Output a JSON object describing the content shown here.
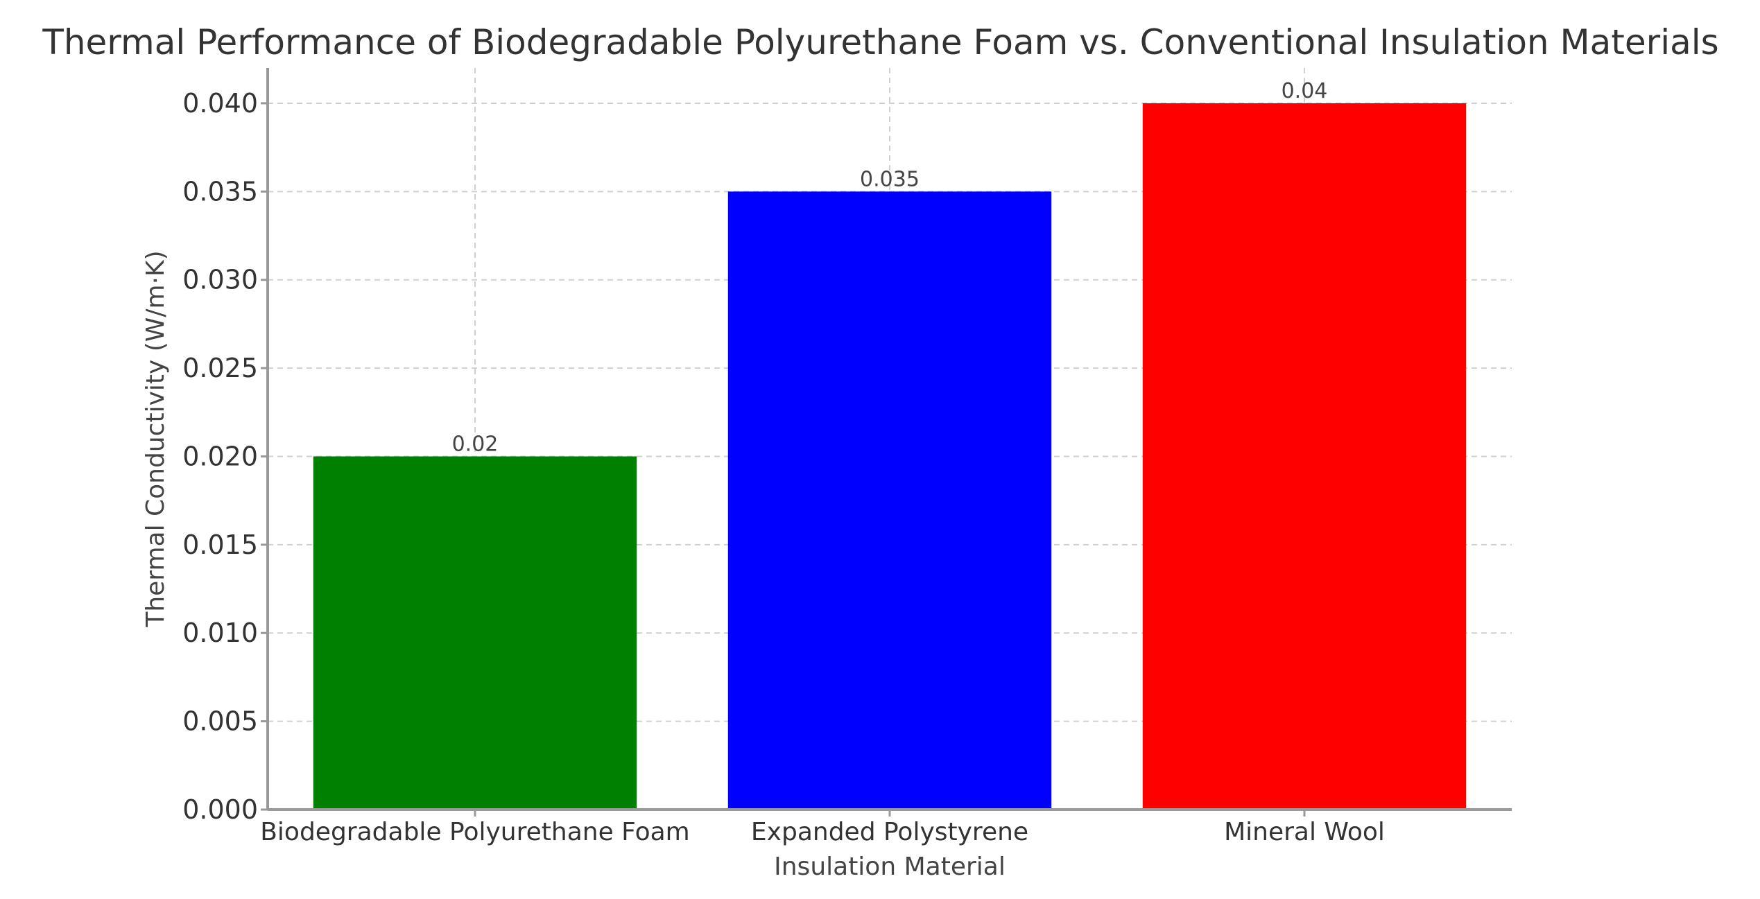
{
  "chart_data": {
    "type": "bar",
    "title": "Thermal Performance of Biodegradable Polyurethane Foam vs. Conventional Insulation Materials",
    "xlabel": "Insulation Material",
    "ylabel": "Thermal Conductivity (W/m·K)",
    "categories": [
      "Biodegradable Polyurethane Foam",
      "Expanded Polystyrene",
      "Mineral Wool"
    ],
    "values": [
      0.02,
      0.035,
      0.04
    ],
    "data_labels": [
      "0.02",
      "0.035",
      "0.04"
    ],
    "colors": [
      "#008000",
      "#0000ff",
      "#ff0000"
    ],
    "ylim": [
      0,
      0.042
    ],
    "yticks": [
      0.0,
      0.005,
      0.01,
      0.015,
      0.02,
      0.025,
      0.03,
      0.035,
      0.04
    ],
    "ytick_labels": [
      "0.000",
      "0.005",
      "0.010",
      "0.015",
      "0.020",
      "0.025",
      "0.030",
      "0.035",
      "0.040"
    ],
    "grid": true,
    "legend": "none"
  }
}
